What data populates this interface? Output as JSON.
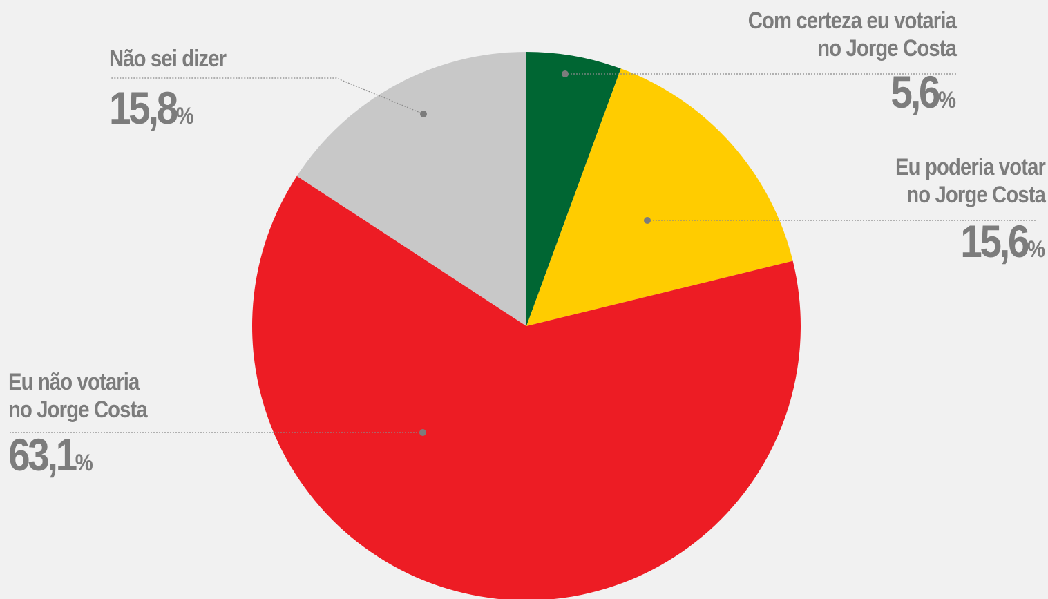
{
  "chart_data": {
    "type": "pie",
    "start_angle_deg": 0,
    "direction": "clockwise",
    "slices": [
      {
        "label_line1": "Com certeza eu votaria",
        "label_line2": "no Jorge Costa",
        "value": 5.6,
        "value_text": "5,6",
        "color": "#006633"
      },
      {
        "label_line1": "Eu poderia votar",
        "label_line2": "no Jorge Costa",
        "value": 15.6,
        "value_text": "15,6",
        "color": "#ffcc00"
      },
      {
        "label_line1": "Eu não votaria",
        "label_line2": "no Jorge Costa",
        "value": 63.1,
        "value_text": "63,1",
        "color": "#ed1c24"
      },
      {
        "label_line1": "Não sei dizer",
        "label_line2": "",
        "value": 15.8,
        "value_text": "15,8",
        "color": "#c8c8c8"
      }
    ],
    "percent_symbol": "%"
  }
}
